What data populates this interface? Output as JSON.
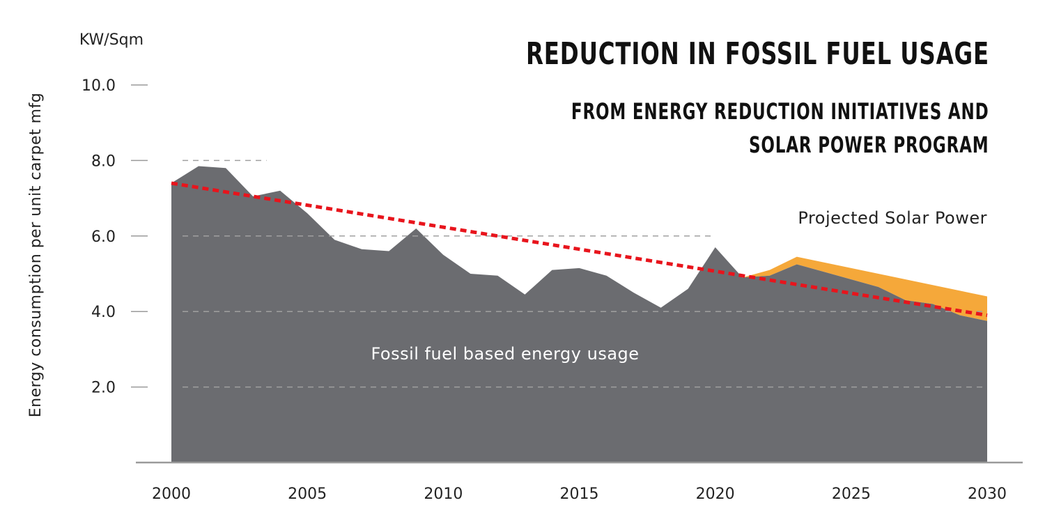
{
  "title": "REDUCTION IN FOSSIL FUEL USAGE",
  "subtitle_line1": "FROM ENERGY REDUCTION INITIATIVES AND",
  "subtitle_line2": "SOLAR POWER PROGRAM",
  "colors": {
    "fossil": "#6b6c70",
    "solar": "#f5a83a",
    "trend": "#e8141c",
    "axis": "#9a9a9a",
    "grid": "#a0a0a0",
    "text": "#222222"
  },
  "chart_data": {
    "type": "area",
    "title": "REDUCTION IN FOSSIL FUEL USAGE",
    "subtitle": "FROM ENERGY REDUCTION INITIATIVES AND SOLAR POWER PROGRAM",
    "unit_label": "KW/Sqm",
    "ylabel": "Energy consumption per unit carpet mfg",
    "xlabel": "",
    "xlim": [
      2000,
      2030
    ],
    "ylim": [
      0,
      10
    ],
    "x_ticks": [
      "2000",
      "2005",
      "2010",
      "2015",
      "2020",
      "2025",
      "2030"
    ],
    "y_ticks": [
      "2.0",
      "4.0",
      "6.0",
      "8.0",
      "10.0"
    ],
    "grid": "dashed horizontal",
    "series": [
      {
        "name": "Fossil fuel based energy usage",
        "x": [
          2000,
          2001,
          2002,
          2003,
          2004,
          2005,
          2006,
          2007,
          2008,
          2009,
          2010,
          2011,
          2012,
          2013,
          2014,
          2015,
          2016,
          2017,
          2018,
          2019,
          2020,
          2021,
          2022,
          2023,
          2024,
          2025,
          2026,
          2027,
          2028,
          2029,
          2030
        ],
        "values": [
          7.4,
          7.85,
          7.8,
          7.05,
          7.2,
          6.6,
          5.9,
          5.65,
          5.6,
          6.2,
          5.5,
          5.0,
          4.95,
          4.45,
          5.1,
          5.15,
          4.95,
          4.5,
          4.1,
          4.6,
          5.7,
          4.9,
          4.95,
          5.25,
          5.05,
          4.85,
          4.65,
          4.3,
          4.2,
          3.9,
          3.75
        ]
      },
      {
        "name": "Projected Solar Power",
        "x": [
          2021,
          2022,
          2023,
          2024,
          2025,
          2026,
          2027,
          2028,
          2029,
          2030
        ],
        "values": [
          4.9,
          5.1,
          5.45,
          5.3,
          5.15,
          5.0,
          4.85,
          4.7,
          4.55,
          4.4
        ]
      }
    ],
    "trend_line": {
      "x": [
        2000,
        2030
      ],
      "values": [
        7.4,
        3.9
      ]
    },
    "partial_gridlines": [
      {
        "y": 8.0,
        "x_end": 2003.5
      },
      {
        "y": 6.0,
        "x_end": 2020
      },
      {
        "y": 4.0,
        "x_end": 2030
      },
      {
        "y": 2.0,
        "x_end": 2030
      }
    ],
    "annotations": [
      "Fossil fuel based energy usage",
      "Projected Solar Power"
    ]
  }
}
